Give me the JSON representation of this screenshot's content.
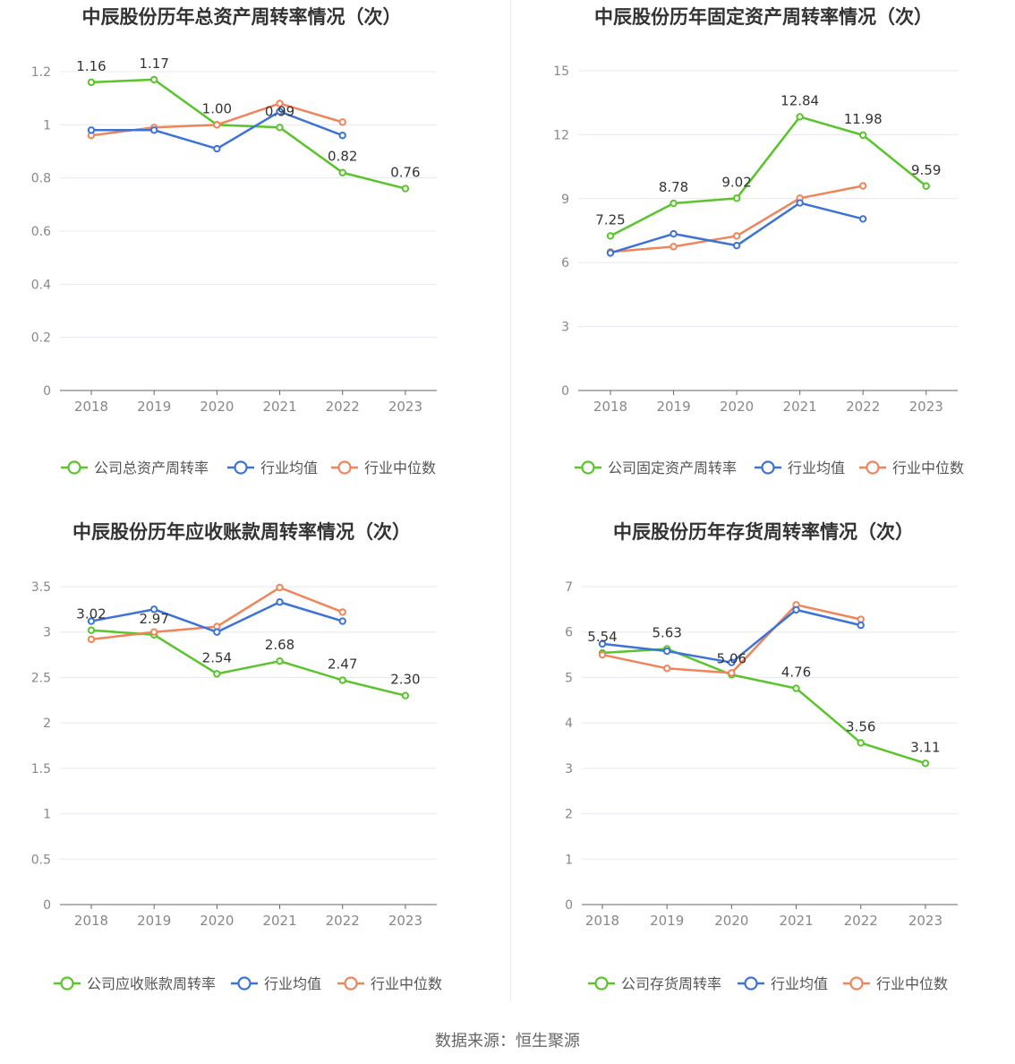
{
  "source_text": "数据来源：恒生聚源",
  "colors": {
    "company": "#5ac42c",
    "avg": "#3d72d6",
    "median": "#f0845a"
  },
  "chart_data": [
    {
      "type": "line",
      "title": "中辰股份历年总资产周转率情况（次）",
      "categories": [
        "2018",
        "2019",
        "2020",
        "2021",
        "2022",
        "2023"
      ],
      "yticks": [
        "0",
        "0.2",
        "0.4",
        "0.6",
        "0.8",
        "1",
        "1.2"
      ],
      "ylim": [
        0,
        1.2
      ],
      "grid": true,
      "legend_position": "bottom",
      "series": [
        {
          "name": "公司总资产周转率",
          "key": "company",
          "values": [
            1.16,
            1.17,
            1.0,
            0.99,
            0.82,
            0.76
          ],
          "labels": [
            "1.16",
            "1.17",
            "1.00",
            "0.99",
            "0.82",
            "0.76"
          ]
        },
        {
          "name": "行业均值",
          "key": "avg",
          "values": [
            0.98,
            0.98,
            0.91,
            1.05,
            0.96,
            null
          ]
        },
        {
          "name": "行业中位数",
          "key": "median",
          "values": [
            0.96,
            0.99,
            1.0,
            1.08,
            1.01,
            null
          ]
        }
      ]
    },
    {
      "type": "line",
      "title": "中辰股份历年固定资产周转率情况（次）",
      "categories": [
        "2018",
        "2019",
        "2020",
        "2021",
        "2022",
        "2023"
      ],
      "yticks": [
        "0",
        "3",
        "6",
        "9",
        "12",
        "15"
      ],
      "ylim": [
        0,
        15
      ],
      "grid": true,
      "legend_position": "bottom",
      "series": [
        {
          "name": "公司固定资产周转率",
          "key": "company",
          "values": [
            7.25,
            8.78,
            9.02,
            12.84,
            11.98,
            9.59
          ],
          "labels": [
            "7.25",
            "8.78",
            "9.02",
            "12.84",
            "11.98",
            "9.59"
          ]
        },
        {
          "name": "行业均值",
          "key": "avg",
          "values": [
            6.45,
            7.35,
            6.8,
            8.8,
            8.05,
            null
          ]
        },
        {
          "name": "行业中位数",
          "key": "median",
          "values": [
            6.5,
            6.75,
            7.25,
            9.02,
            9.6,
            null
          ]
        }
      ]
    },
    {
      "type": "line",
      "title": "中辰股份历年应收账款周转率情况（次）",
      "categories": [
        "2018",
        "2019",
        "2020",
        "2021",
        "2022",
        "2023"
      ],
      "yticks": [
        "0",
        "0.5",
        "1",
        "1.5",
        "2",
        "2.5",
        "3",
        "3.5"
      ],
      "ylim": [
        0,
        3.5
      ],
      "grid": true,
      "legend_position": "bottom",
      "series": [
        {
          "name": "公司应收账款周转率",
          "key": "company",
          "values": [
            3.02,
            2.97,
            2.54,
            2.68,
            2.47,
            2.3
          ],
          "labels": [
            "3.02",
            "2.97",
            "2.54",
            "2.68",
            "2.47",
            "2.30"
          ]
        },
        {
          "name": "行业均值",
          "key": "avg",
          "values": [
            3.12,
            3.25,
            3.0,
            3.33,
            3.12,
            null
          ]
        },
        {
          "name": "行业中位数",
          "key": "median",
          "values": [
            2.92,
            3.0,
            3.06,
            3.49,
            3.22,
            null
          ]
        }
      ]
    },
    {
      "type": "line",
      "title": "中辰股份历年存货周转率情况（次）",
      "categories": [
        "2018",
        "2019",
        "2020",
        "2021",
        "2022",
        "2023"
      ],
      "yticks": [
        "0",
        "1",
        "2",
        "3",
        "4",
        "5",
        "6",
        "7"
      ],
      "ylim": [
        0,
        7
      ],
      "grid": true,
      "legend_position": "bottom",
      "series": [
        {
          "name": "公司存货周转率",
          "key": "company",
          "values": [
            5.54,
            5.63,
            5.06,
            4.76,
            3.56,
            3.11
          ],
          "labels": [
            "5.54",
            "5.63",
            "5.06",
            "4.76",
            "3.56",
            "3.11"
          ]
        },
        {
          "name": "行业均值",
          "key": "avg",
          "values": [
            5.74,
            5.58,
            5.33,
            6.49,
            6.15,
            null
          ]
        },
        {
          "name": "行业中位数",
          "key": "median",
          "values": [
            5.5,
            5.2,
            5.1,
            6.6,
            6.28,
            null
          ]
        }
      ]
    }
  ]
}
